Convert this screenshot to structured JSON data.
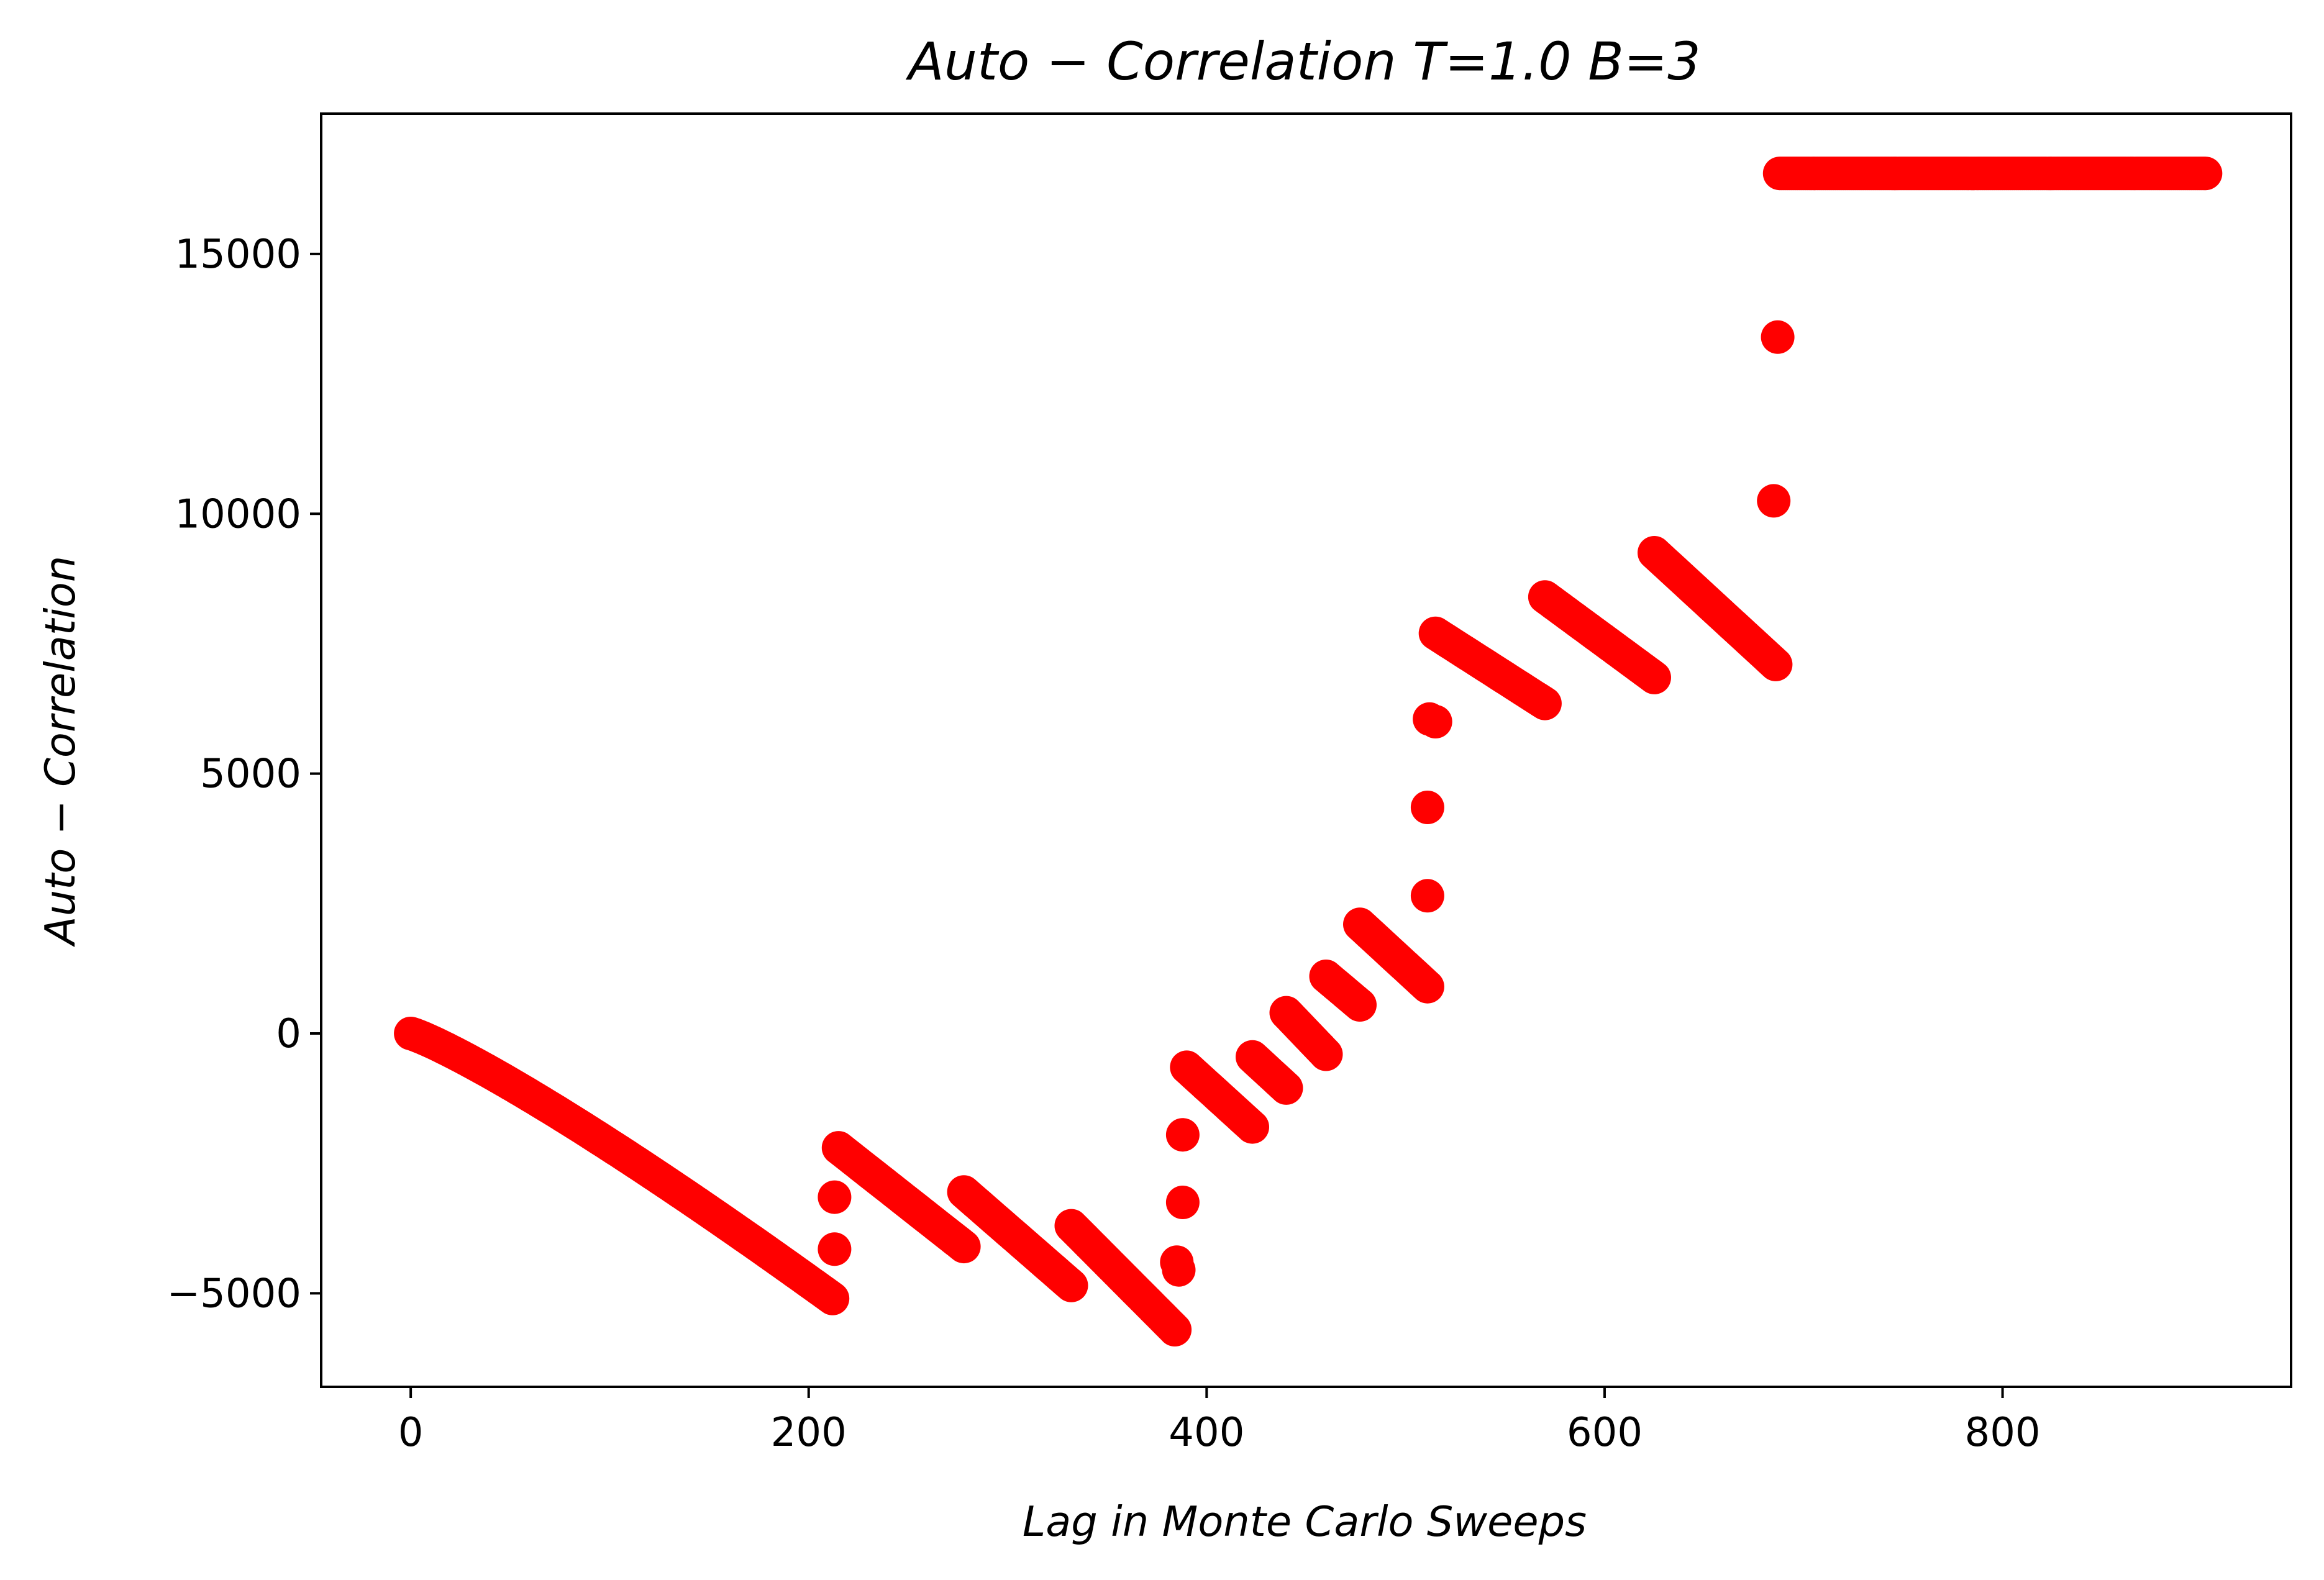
{
  "chart_data": {
    "type": "scatter",
    "title": "Auto − Correlation T=1.0 B=3",
    "xlabel": "Lag in Monte Carlo Sweeps",
    "ylabel": "Auto − Correlation",
    "xlim": [
      -45,
      945
    ],
    "ylim": [
      -6800,
      17700
    ],
    "xticks": [
      0,
      200,
      400,
      600,
      800
    ],
    "yticks": [
      -5000,
      0,
      5000,
      10000,
      15000
    ],
    "xtick_labels": [
      "0",
      "200",
      "400",
      "600",
      "800"
    ],
    "ytick_labels": [
      "−5000",
      "0",
      "5000",
      "10000",
      "15000"
    ],
    "grid": false,
    "marker_color": "#ff0000",
    "segments": [
      {
        "x": [
          0,
          212
        ],
        "y": [
          0,
          -5100
        ],
        "curve": "concave"
      },
      {
        "x": [
          215,
          278
        ],
        "y": [
          -2200,
          -4100
        ]
      },
      {
        "x": [
          278,
          332
        ],
        "y": [
          -3050,
          -4850
        ]
      },
      {
        "x": [
          332,
          384
        ],
        "y": [
          -3700,
          -5700
        ]
      },
      {
        "x": [
          390,
          423
        ],
        "y": [
          -650,
          -1800
        ]
      },
      {
        "x": [
          423,
          440
        ],
        "y": [
          -450,
          -1050
        ]
      },
      {
        "x": [
          440,
          460
        ],
        "y": [
          400,
          -400
        ]
      },
      {
        "x": [
          460,
          477
        ],
        "y": [
          1100,
          550
        ]
      },
      {
        "x": [
          477,
          511
        ],
        "y": [
          2100,
          900
        ]
      },
      {
        "x": [
          515,
          570
        ],
        "y": [
          7700,
          6350
        ]
      },
      {
        "x": [
          570,
          625
        ],
        "y": [
          8400,
          6850
        ]
      },
      {
        "x": [
          625,
          686
        ],
        "y": [
          9250,
          7100
        ]
      },
      {
        "x": [
          688,
          902
        ],
        "y": [
          16550,
          16550
        ]
      }
    ],
    "isolated_points": [
      {
        "x": 213,
        "y": -3150
      },
      {
        "x": 213,
        "y": -4150
      },
      {
        "x": 385,
        "y": -4400
      },
      {
        "x": 386,
        "y": -4550
      },
      {
        "x": 388,
        "y": -1950
      },
      {
        "x": 388,
        "y": -3250
      },
      {
        "x": 511,
        "y": 2650
      },
      {
        "x": 511,
        "y": 4350
      },
      {
        "x": 512,
        "y": 6050
      },
      {
        "x": 515,
        "y": 6000
      },
      {
        "x": 685,
        "y": 10250
      },
      {
        "x": 687,
        "y": 13400
      }
    ]
  }
}
